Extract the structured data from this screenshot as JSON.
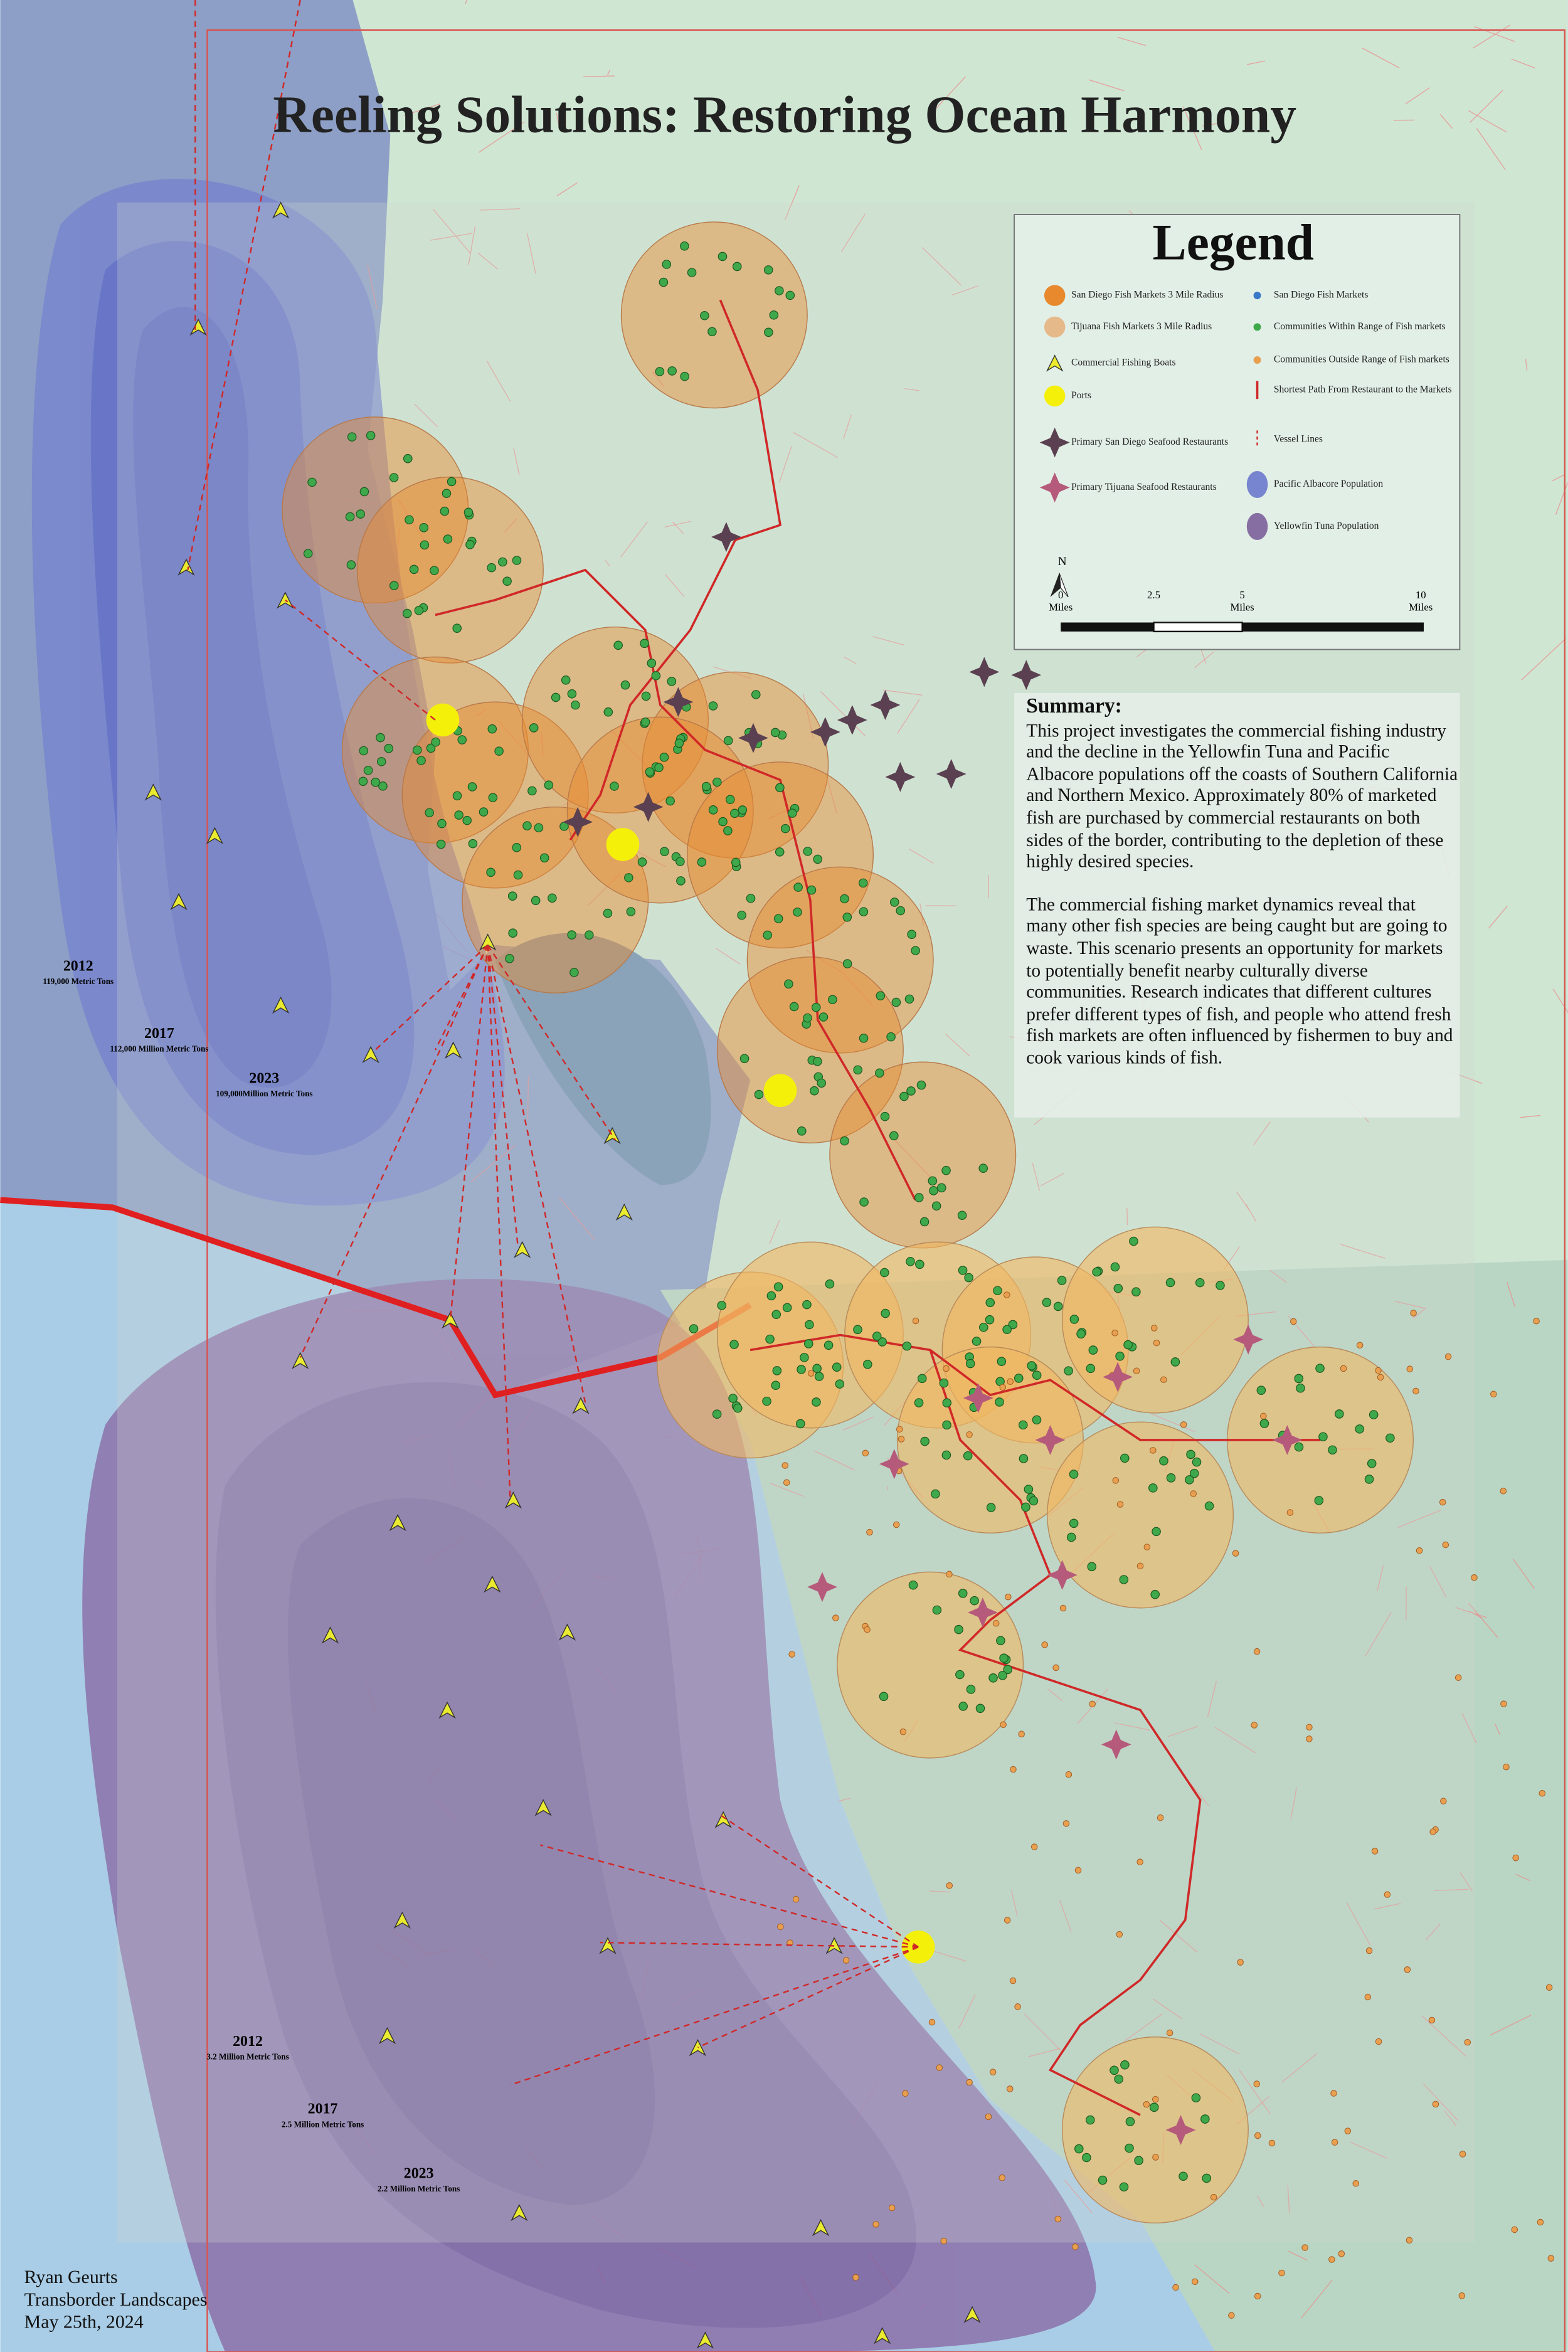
{
  "title": "Reeling Solutions: Restoring Ocean Harmony",
  "legend": {
    "title": "Legend",
    "items": [
      "San Diego Fish Markets 3 Mile Radius",
      "Tijuana Fish Markets 3 Mile Radius",
      "Commercial Fishing Boats",
      "Ports",
      "Primary San Diego Seafood Restaurants",
      "Primary Tijuana Seafood Restaurants",
      "San Diego Fish Markets",
      "Communities Within Range of Fish markets",
      "Communities Outside Range of Fish markets",
      "Shortest Path From Restaurant to the Markets",
      "Vessel Lines",
      "Pacific Albacore Population",
      "Yellowfin Tuna Population"
    ],
    "north": "N",
    "scale": [
      "0",
      "2.5",
      "5",
      "10"
    ],
    "scale_unit": "Miles"
  },
  "summary": {
    "heading": "Summary:",
    "paragraphs": [
      "This project investigates the commercial fishing industry and the decline in the Yellowfin Tuna and Pacific Albacore populations off the coasts of Southern California and Northern Mexico. Approximately 80% of marketed fish are purchased by commercial restaurants on both sides of the border, contributing to the depletion of these highly desired species.",
      "The commercial fishing market dynamics reveal that many other fish species are being caught but are going to waste. This scenario presents an opportunity for markets to potentially benefit nearby culturally diverse communities. Research indicates that different cultures prefer different types of fish, and people who attend fresh fish markets are often influenced by fishermen to buy and cook various kinds of fish."
    ]
  },
  "albacore_labels": [
    {
      "year": "2012",
      "amount": "119,000 Metric Tons"
    },
    {
      "year": "2017",
      "amount": "112,000 Million Metric Tons"
    },
    {
      "year": "2023",
      "amount": "109,000Million Metric Tons"
    }
  ],
  "yellowfin_labels": [
    {
      "year": "2012",
      "amount": "3.2 Million Metric Tons"
    },
    {
      "year": "2017",
      "amount": "2.5 Million Metric Tons"
    },
    {
      "year": "2023",
      "amount": "2.2 Million Metric Tons"
    }
  ],
  "credits": [
    "Ryan Geurts",
    "Transborder Landscapes",
    "May 25th, 2024"
  ]
}
